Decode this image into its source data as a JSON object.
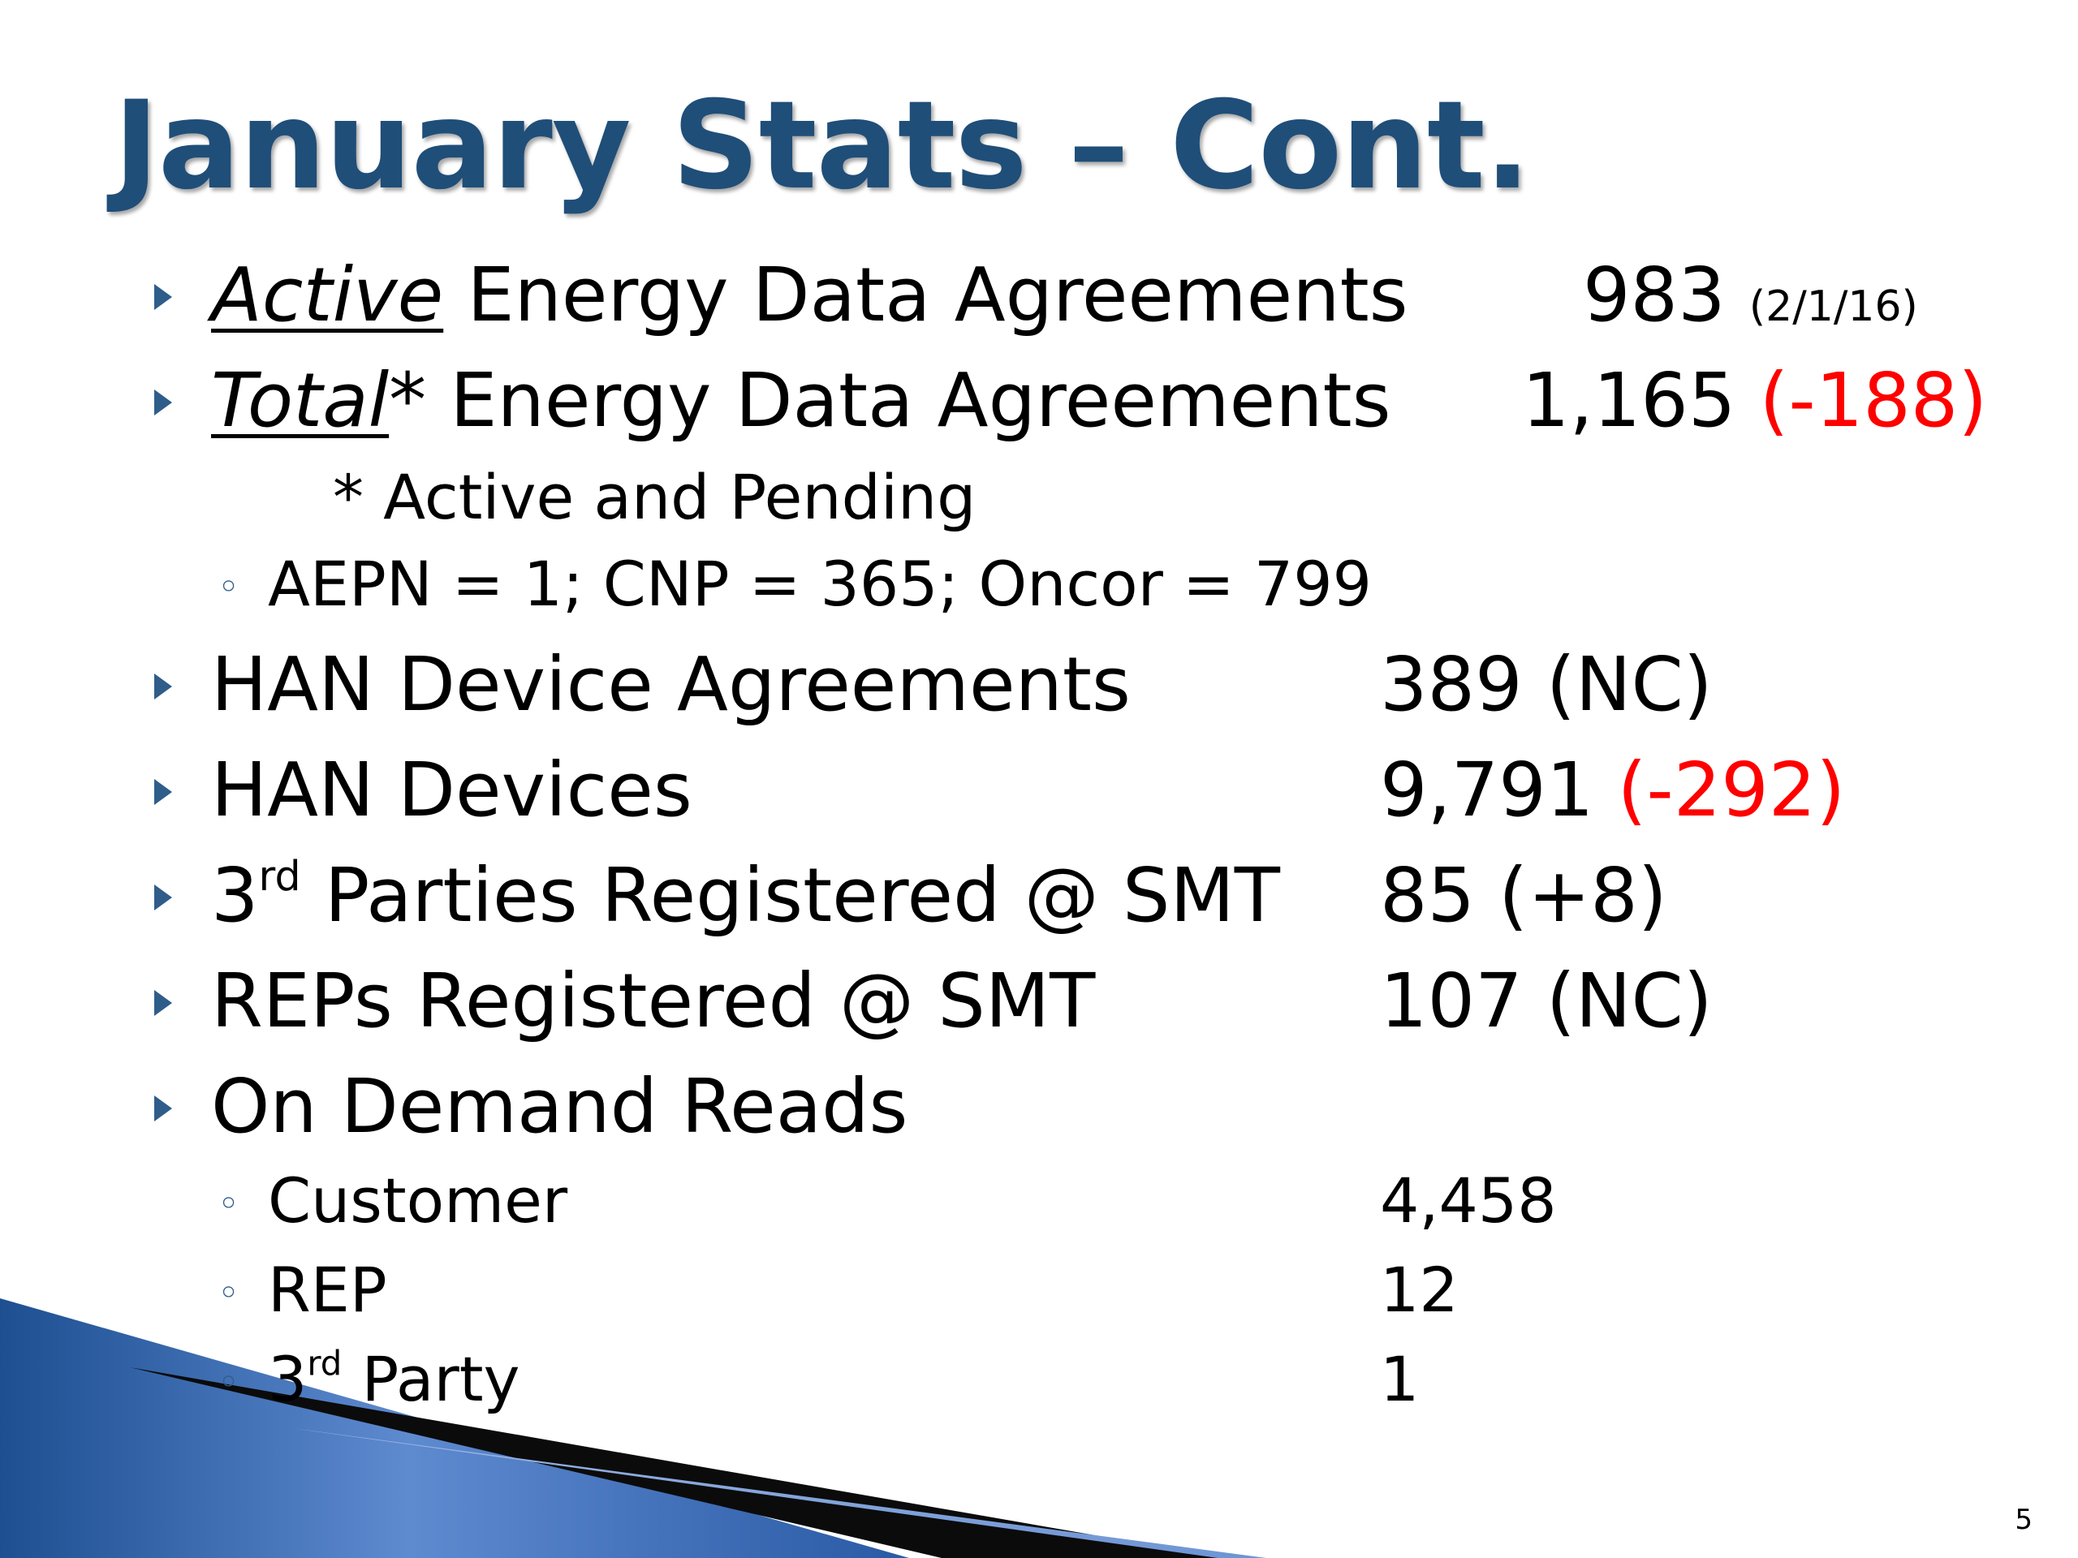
{
  "title": "January Stats – Cont.",
  "items": [
    {
      "emph": "Active",
      "label": " Energy Data Agreements",
      "value": "983",
      "note": "(2/1/16)"
    },
    {
      "emph": "Total",
      "label": "* Energy Data Agreements",
      "value": "1,165",
      "change": "(-188)"
    },
    {
      "footnote": "* Active and Pending"
    },
    {
      "breakdown": "AEPN = 1; CNP = 365; Oncor = 799"
    },
    {
      "label": "HAN Device Agreements",
      "value": "389 (NC)"
    },
    {
      "label": "HAN Devices",
      "value": "9,791",
      "change": "(-292)"
    },
    {
      "label_pre": "3",
      "label_sup": "rd",
      "label_post": " Parties Registered @ SMT",
      "value": "85 (+8)"
    },
    {
      "label": "REPs Registered @ SMT",
      "value": "107 (NC)"
    },
    {
      "label": "On Demand Reads"
    },
    {
      "label": "Customer",
      "value": "4,458"
    },
    {
      "label": "REP",
      "value": "12"
    },
    {
      "label_pre": "3",
      "label_sup": "rd",
      "label_post": " Party",
      "value": "1"
    }
  ],
  "page_number": "5",
  "colors": {
    "title": "#1f4e79",
    "bullet": "#2f5d8a",
    "negative": "#ff0000"
  }
}
